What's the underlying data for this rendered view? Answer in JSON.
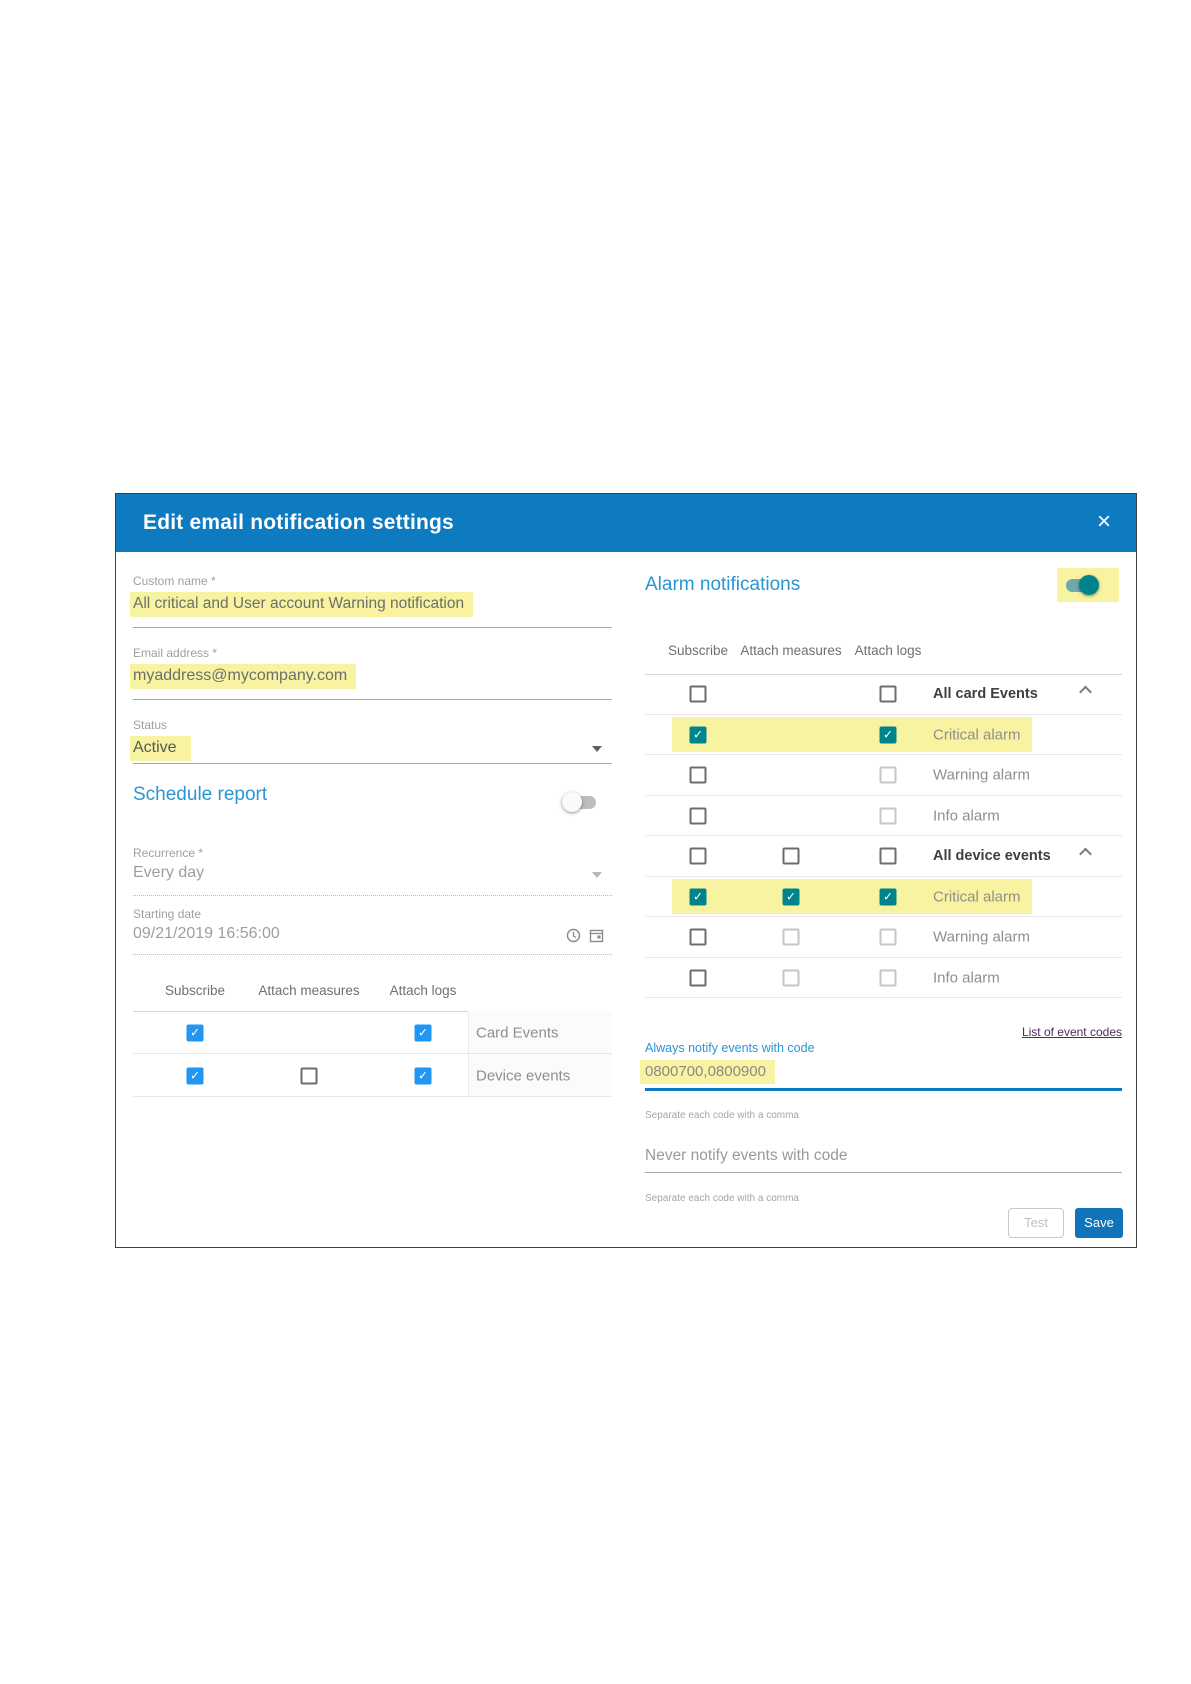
{
  "dialog": {
    "title": "Edit email notification settings",
    "close_glyph": "×"
  },
  "left": {
    "custom_name": {
      "label": "Custom name *",
      "value": "All critical and User account Warning notification",
      "highlighted": true
    },
    "email": {
      "label": "Email address *",
      "value": "myaddress@mycompany.com",
      "highlighted": true
    },
    "status": {
      "label": "Status",
      "value": "Active",
      "highlighted": true
    },
    "schedule_heading": "Schedule report",
    "schedule_toggle": "off",
    "recurrence": {
      "label": "Recurrence *",
      "value": "Every day"
    },
    "starting_date": {
      "label": "Starting date",
      "value": "09/21/2019 16:56:00"
    },
    "table": {
      "headers": [
        "Subscribe",
        "Attach measures",
        "Attach logs"
      ],
      "rows": [
        {
          "label": "Card Events",
          "bold": false,
          "chevron": false,
          "highlighted": false,
          "cells": {
            "subscribe": "checked",
            "measures": "none",
            "logs": "checked"
          }
        },
        {
          "label": "Device events",
          "bold": false,
          "chevron": false,
          "highlighted": false,
          "cells": {
            "subscribe": "checked",
            "measures": "unchecked",
            "logs": "checked"
          }
        }
      ]
    }
  },
  "right": {
    "heading": "Alarm notifications",
    "alarm_toggle": "on",
    "table": {
      "headers": [
        "Subscribe",
        "Attach measures",
        "Attach logs"
      ],
      "rows": [
        {
          "label": "All card Events",
          "bold": true,
          "chevron": true,
          "highlighted": false,
          "cells": {
            "subscribe": "unchecked",
            "measures": "none",
            "logs": "unchecked"
          }
        },
        {
          "label": "Critical alarm",
          "bold": false,
          "chevron": false,
          "highlighted": true,
          "cells": {
            "subscribe": "checked",
            "measures": "none",
            "logs": "checked"
          }
        },
        {
          "label": "Warning alarm",
          "bold": false,
          "chevron": false,
          "highlighted": false,
          "cells": {
            "subscribe": "unchecked",
            "measures": "none",
            "logs": "light"
          }
        },
        {
          "label": "Info alarm",
          "bold": false,
          "chevron": false,
          "highlighted": false,
          "cells": {
            "subscribe": "unchecked",
            "measures": "none",
            "logs": "light"
          }
        },
        {
          "label": "All device events",
          "bold": true,
          "chevron": true,
          "highlighted": false,
          "cells": {
            "subscribe": "unchecked",
            "measures": "unchecked",
            "logs": "unchecked"
          }
        },
        {
          "label": "Critical alarm",
          "bold": false,
          "chevron": false,
          "highlighted": true,
          "cells": {
            "subscribe": "checked",
            "measures": "checked",
            "logs": "checked"
          }
        },
        {
          "label": "Warning alarm",
          "bold": false,
          "chevron": false,
          "highlighted": false,
          "cells": {
            "subscribe": "unchecked",
            "measures": "light",
            "logs": "light"
          }
        },
        {
          "label": "Info alarm",
          "bold": false,
          "chevron": false,
          "highlighted": false,
          "cells": {
            "subscribe": "unchecked",
            "measures": "light",
            "logs": "light"
          }
        }
      ]
    },
    "event_codes_link": "List of event codes",
    "always_notify": {
      "label": "Always notify events with code",
      "value": "0800700,0800900",
      "helper": "Separate each code with a comma",
      "highlighted": true
    },
    "never_notify": {
      "placeholder": "Never notify events with code",
      "helper": "Separate each code with a comma"
    },
    "buttons": {
      "test": "Test",
      "save": "Save"
    }
  },
  "colors": {
    "header_blue": "#0e7bc0",
    "accent_blue": "#2896d4",
    "checkbox_blue": "#2196f3",
    "checkbox_teal": "#00838a",
    "highlight_yellow": "#f7f3a0",
    "save_blue": "#1173b9",
    "link_purple": "#4e2a5a"
  }
}
